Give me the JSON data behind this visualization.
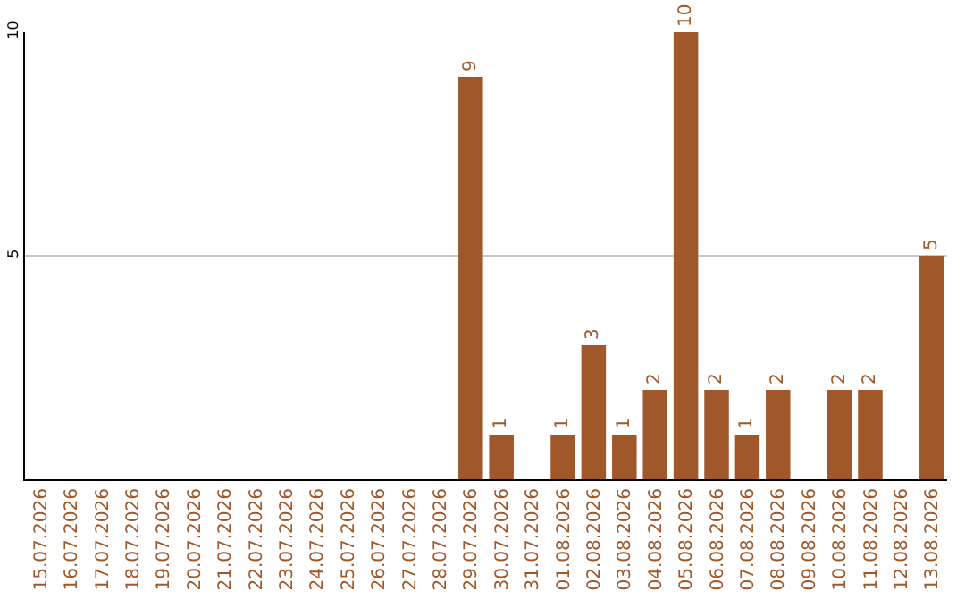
{
  "chart_data": {
    "type": "bar",
    "categories": [
      "15.07.2026",
      "16.07.2026",
      "17.07.2026",
      "18.07.2026",
      "19.07.2026",
      "20.07.2026",
      "21.07.2026",
      "22.07.2026",
      "23.07.2026",
      "24.07.2026",
      "25.07.2026",
      "26.07.2026",
      "27.07.2026",
      "28.07.2026",
      "29.07.2026",
      "30.07.2026",
      "31.07.2026",
      "01.08.2026",
      "02.08.2026",
      "03.08.2026",
      "04.08.2026",
      "05.08.2026",
      "06.08.2026",
      "07.08.2026",
      "08.08.2026",
      "09.08.2026",
      "10.08.2026",
      "11.08.2026",
      "12.08.2026",
      "13.08.2026"
    ],
    "values": [
      0,
      0,
      0,
      0,
      0,
      0,
      0,
      0,
      0,
      0,
      0,
      0,
      0,
      0,
      9,
      1,
      0,
      1,
      3,
      1,
      2,
      10,
      2,
      1,
      2,
      0,
      2,
      2,
      0,
      5
    ],
    "value_labels": [
      null,
      null,
      null,
      null,
      null,
      null,
      null,
      null,
      null,
      null,
      null,
      null,
      null,
      null,
      "9",
      "1",
      null,
      "1",
      "3",
      "1",
      "2",
      "10",
      "2",
      "1",
      "2",
      null,
      "2",
      "2",
      null,
      "5"
    ],
    "color": "#a0582b",
    "ylim": [
      0,
      10
    ],
    "yticks": [
      5,
      10
    ],
    "grid": "y"
  }
}
